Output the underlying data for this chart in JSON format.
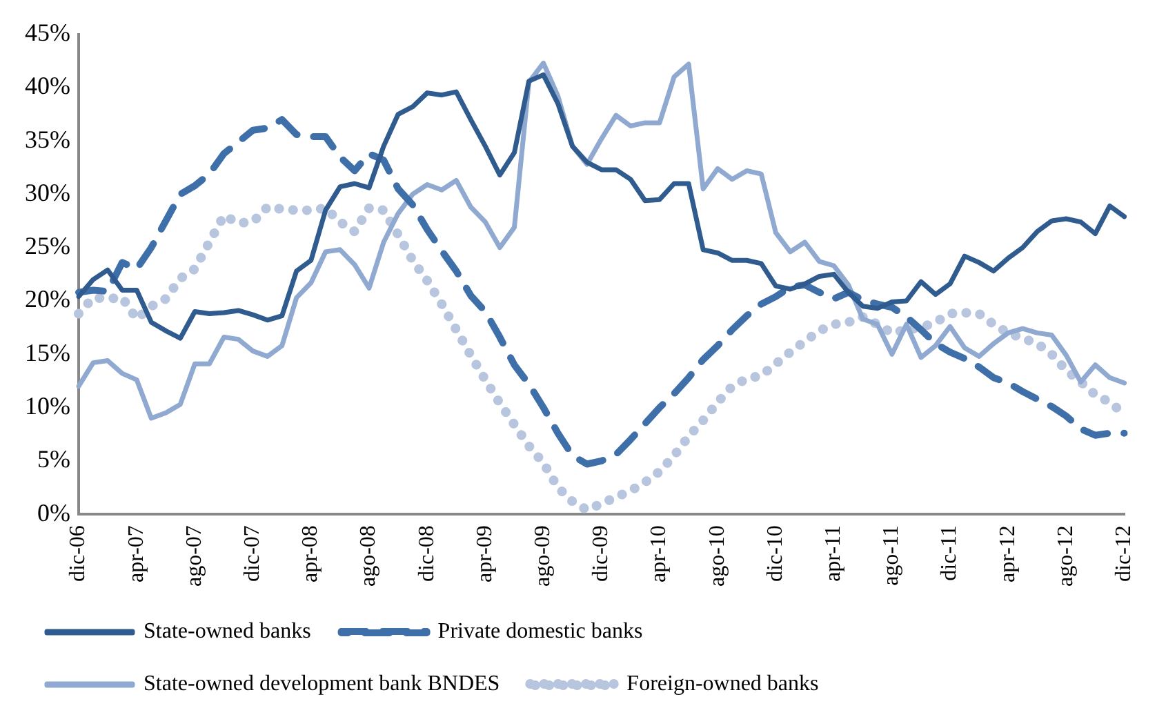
{
  "chart_data": {
    "type": "line",
    "categories": [
      "dic-06",
      null,
      null,
      null,
      "apr-07",
      null,
      null,
      null,
      "ago-07",
      null,
      null,
      null,
      "dic-07",
      null,
      null,
      null,
      "apr-08",
      null,
      null,
      null,
      "ago-08",
      null,
      null,
      null,
      "dic-08",
      null,
      null,
      null,
      "apr-09",
      null,
      null,
      null,
      "ago-09",
      null,
      null,
      null,
      "dic-09",
      null,
      null,
      null,
      "apr-10",
      null,
      null,
      null,
      "ago-10",
      null,
      null,
      null,
      "dic-10",
      null,
      null,
      null,
      "apr-11",
      null,
      null,
      null,
      "ago-11",
      null,
      null,
      null,
      "dic-11",
      null,
      null,
      null,
      "apr-12",
      null,
      null,
      null,
      "ago-12",
      null,
      null,
      null,
      "dic-12"
    ],
    "series": [
      {
        "name": "State-owned banks",
        "color": "#2f5b8f",
        "line_style": "solid",
        "values": [
          20.4,
          22.0,
          22.9,
          21.0,
          21.0,
          18.0,
          17.2,
          16.5,
          19.0,
          18.8,
          18.9,
          19.1,
          18.7,
          18.2,
          18.6,
          22.8,
          23.8,
          28.5,
          30.7,
          31.0,
          30.6,
          34.5,
          37.5,
          38.2,
          39.5,
          39.3,
          39.6,
          37.0,
          34.5,
          31.8,
          33.9,
          40.6,
          41.2,
          38.5,
          34.5,
          33.0,
          32.3,
          32.3,
          31.4,
          29.4,
          29.5,
          31.0,
          31.0,
          24.8,
          24.5,
          23.8,
          23.8,
          23.5,
          21.4,
          21.1,
          21.6,
          22.3,
          22.5,
          20.8,
          19.5,
          19.3,
          19.9,
          20.0,
          21.8,
          20.6,
          21.6,
          24.2,
          23.6,
          22.8,
          24.0,
          25.0,
          26.5,
          27.5,
          27.7,
          27.4,
          26.3,
          28.9,
          27.9
        ]
      },
      {
        "name": "Private domestic banks",
        "color": "#3e6fa8",
        "line_style": "dashed",
        "values": [
          20.8,
          21.0,
          20.9,
          23.6,
          23.0,
          25.0,
          27.5,
          30.0,
          30.8,
          31.9,
          33.8,
          34.9,
          36.0,
          36.2,
          37.0,
          35.6,
          35.4,
          35.4,
          33.5,
          32.2,
          33.8,
          33.2,
          30.5,
          29.0,
          26.7,
          24.7,
          22.8,
          20.5,
          19.0,
          16.6,
          14.0,
          12.2,
          10.0,
          7.6,
          5.5,
          4.7,
          5.0,
          5.6,
          7.0,
          8.5,
          10.0,
          11.3,
          12.8,
          14.5,
          15.8,
          17.3,
          18.6,
          19.7,
          20.4,
          21.3,
          21.5,
          20.8,
          20.2,
          20.8,
          20.1,
          19.7,
          19.4,
          18.5,
          17.3,
          16.0,
          15.2,
          14.6,
          13.8,
          12.8,
          12.3,
          11.5,
          10.8,
          10.1,
          9.2,
          8.0,
          7.4,
          7.6,
          7.6
        ]
      },
      {
        "name": "State-owned development bank BNDES",
        "color": "#8fa9d0",
        "line_style": "solid",
        "values": [
          12.0,
          14.2,
          14.4,
          13.2,
          12.6,
          9.0,
          9.5,
          10.3,
          14.1,
          14.1,
          16.6,
          16.4,
          15.3,
          14.8,
          15.8,
          20.3,
          21.7,
          24.6,
          24.8,
          23.4,
          21.2,
          25.5,
          28.2,
          30.0,
          30.9,
          30.4,
          31.3,
          28.8,
          27.4,
          25.0,
          26.9,
          40.5,
          42.3,
          39.2,
          34.5,
          32.8,
          35.2,
          37.4,
          36.4,
          36.7,
          36.7,
          41.0,
          42.2,
          30.5,
          32.4,
          31.4,
          32.2,
          31.9,
          26.4,
          24.6,
          25.5,
          23.7,
          23.3,
          21.5,
          18.3,
          17.8,
          15.0,
          17.8,
          14.7,
          15.8,
          17.6,
          15.6,
          14.8,
          16.0,
          17.0,
          17.4,
          17.0,
          16.8,
          14.9,
          12.4,
          14.0,
          12.8,
          12.3
        ]
      },
      {
        "name": "Foreign-owned banks",
        "color": "#b7c5de",
        "line_style": "dotted",
        "values": [
          18.8,
          20.3,
          20.2,
          20.3,
          18.3,
          19.5,
          20.2,
          22.1,
          23.0,
          25.5,
          28.0,
          27.3,
          27.4,
          28.8,
          28.6,
          28.5,
          28.5,
          28.7,
          27.4,
          26.5,
          28.7,
          28.5,
          26.2,
          23.8,
          21.9,
          19.7,
          17.3,
          14.9,
          12.6,
          10.4,
          8.4,
          6.4,
          4.8,
          2.5,
          1.2,
          0.4,
          1.0,
          1.6,
          2.2,
          3.0,
          4.0,
          5.5,
          7.3,
          8.8,
          10.5,
          12.0,
          12.7,
          13.0,
          14.1,
          15.2,
          16.2,
          17.2,
          17.8,
          18.0,
          18.5,
          17.8,
          17.0,
          17.3,
          17.5,
          18.0,
          18.8,
          18.9,
          18.8,
          17.8,
          17.0,
          16.5,
          16.0,
          15.0,
          13.5,
          12.4,
          11.2,
          10.5,
          9.4
        ]
      }
    ],
    "ylim": [
      0,
      45
    ],
    "yticks": [
      {
        "value": 0,
        "label": "0%"
      },
      {
        "value": 5,
        "label": "5%"
      },
      {
        "value": 10,
        "label": "10%"
      },
      {
        "value": 15,
        "label": "15%"
      },
      {
        "value": 20,
        "label": "20%"
      },
      {
        "value": 25,
        "label": "25%"
      },
      {
        "value": 30,
        "label": "30%"
      },
      {
        "value": 35,
        "label": "35%"
      },
      {
        "value": 40,
        "label": "40%"
      },
      {
        "value": 45,
        "label": "45%"
      }
    ],
    "grid": false,
    "legend": "bottom",
    "marker": "none"
  }
}
